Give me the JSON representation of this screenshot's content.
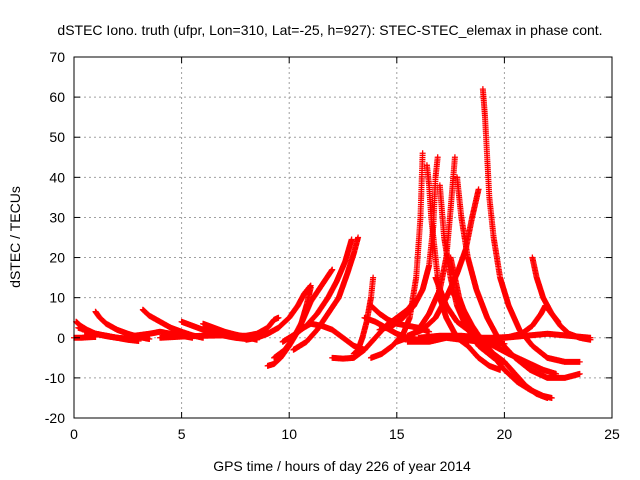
{
  "chart_data": {
    "type": "scatter",
    "title": "dSTEC Iono. truth (ufpr, Lon=310, Lat=-25, h=927): STEC-STEC_elemax in phase cont.",
    "xlabel": "GPS time / hours of day 226 of year 2014",
    "ylabel": "dSTEC  / TECUs",
    "xlim": [
      0,
      25
    ],
    "ylim": [
      -20,
      70
    ],
    "xticks": [
      0,
      5,
      10,
      15,
      20,
      25
    ],
    "yticks": [
      -20,
      -10,
      0,
      10,
      20,
      30,
      40,
      50,
      60,
      70
    ],
    "grid": true,
    "marker": "+",
    "color": "#ff0000",
    "series": [
      {
        "points": [
          [
            0.0,
            0.0
          ],
          [
            0.3,
            0.0
          ],
          [
            0.6,
            0.1
          ],
          [
            0.9,
            0.2
          ],
          [
            1.0,
            0.2
          ]
        ]
      },
      {
        "points": [
          [
            0.1,
            4.0
          ],
          [
            0.3,
            3.0
          ],
          [
            0.6,
            2.0
          ],
          [
            1.0,
            1.0
          ],
          [
            1.5,
            0.4
          ],
          [
            2.0,
            0.0
          ],
          [
            2.5,
            -0.2
          ]
        ]
      },
      {
        "points": [
          [
            0.2,
            2.5
          ],
          [
            0.5,
            2.0
          ],
          [
            1.0,
            1.0
          ],
          [
            1.5,
            0.5
          ],
          [
            2.0,
            0.0
          ],
          [
            2.6,
            -0.3
          ]
        ]
      },
      {
        "points": [
          [
            1.0,
            6.5
          ],
          [
            1.2,
            5.0
          ],
          [
            1.5,
            3.5
          ],
          [
            2.0,
            2.0
          ],
          [
            2.5,
            1.0
          ],
          [
            3.0,
            0.2
          ],
          [
            3.5,
            -0.3
          ]
        ]
      },
      {
        "points": [
          [
            0.5,
            1.5
          ],
          [
            1.0,
            1.0
          ],
          [
            1.5,
            0.5
          ],
          [
            2.0,
            0.0
          ],
          [
            2.5,
            -0.5
          ],
          [
            3.0,
            -0.8
          ]
        ]
      },
      {
        "points": [
          [
            3.2,
            7.0
          ],
          [
            3.5,
            5.5
          ],
          [
            4.0,
            4.0
          ],
          [
            4.5,
            2.5
          ],
          [
            5.0,
            1.5
          ],
          [
            5.5,
            0.6
          ],
          [
            6.0,
            0.0
          ]
        ]
      },
      {
        "points": [
          [
            2.8,
            0.5
          ],
          [
            3.5,
            1.0
          ],
          [
            4.0,
            1.5
          ],
          [
            4.5,
            1.0
          ],
          [
            5.0,
            0.5
          ],
          [
            5.5,
            0.0
          ]
        ]
      },
      {
        "points": [
          [
            5.0,
            4.0
          ],
          [
            5.5,
            3.0
          ],
          [
            6.0,
            2.0
          ],
          [
            6.5,
            1.2
          ],
          [
            7.0,
            0.5
          ],
          [
            7.5,
            0.0
          ],
          [
            8.0,
            -0.3
          ]
        ]
      },
      {
        "points": [
          [
            6.0,
            3.5
          ],
          [
            6.5,
            2.5
          ],
          [
            7.0,
            1.5
          ],
          [
            7.5,
            0.8
          ],
          [
            8.0,
            0.2
          ],
          [
            8.5,
            -0.5
          ]
        ]
      },
      {
        "points": [
          [
            4.0,
            0.0
          ],
          [
            5.0,
            0.3
          ],
          [
            6.0,
            0.5
          ],
          [
            7.0,
            0.6
          ],
          [
            8.0,
            0.5
          ],
          [
            8.5,
            1.0
          ],
          [
            9.0,
            2.5
          ],
          [
            9.3,
            4.5
          ],
          [
            9.5,
            5.0
          ]
        ]
      },
      {
        "points": [
          [
            8.0,
            -0.5
          ],
          [
            8.5,
            0.0
          ],
          [
            9.0,
            1.0
          ],
          [
            9.5,
            2.5
          ],
          [
            10.0,
            5.0
          ],
          [
            10.4,
            8.0
          ],
          [
            10.7,
            11.0
          ],
          [
            11.0,
            13.0
          ]
        ]
      },
      {
        "points": [
          [
            9.0,
            -7.0
          ],
          [
            9.3,
            -6.5
          ],
          [
            9.6,
            -5.0
          ],
          [
            10.0,
            -2.0
          ],
          [
            10.5,
            2.5
          ],
          [
            10.8,
            8.0
          ],
          [
            11.0,
            12.5
          ]
        ]
      },
      {
        "points": [
          [
            9.3,
            -5.0
          ],
          [
            9.8,
            -3.0
          ],
          [
            10.2,
            0.0
          ],
          [
            10.6,
            4.0
          ],
          [
            11.0,
            9.0
          ],
          [
            11.5,
            13.0
          ],
          [
            12.0,
            17.0
          ]
        ]
      },
      {
        "points": [
          [
            9.7,
            -1.0
          ],
          [
            10.3,
            1.0
          ],
          [
            10.8,
            3.0
          ],
          [
            11.3,
            6.0
          ],
          [
            11.8,
            10.0
          ],
          [
            12.2,
            14.0
          ],
          [
            12.6,
            19.0
          ],
          [
            12.9,
            24.5
          ]
        ]
      },
      {
        "points": [
          [
            10.2,
            -3.0
          ],
          [
            10.8,
            -1.0
          ],
          [
            11.3,
            2.0
          ],
          [
            11.8,
            6.0
          ],
          [
            12.3,
            10.0
          ],
          [
            12.7,
            16.0
          ],
          [
            13.0,
            21.0
          ],
          [
            13.2,
            25.0
          ]
        ]
      },
      {
        "points": [
          [
            10.5,
            2.0
          ],
          [
            11.0,
            3.5
          ],
          [
            11.5,
            3.0
          ],
          [
            12.0,
            2.0
          ],
          [
            12.5,
            0.0
          ],
          [
            13.0,
            -2.0
          ],
          [
            13.5,
            -3.0
          ]
        ]
      },
      {
        "points": [
          [
            12.0,
            -5.0
          ],
          [
            12.5,
            -5.2
          ],
          [
            13.0,
            -5.0
          ],
          [
            13.5,
            -3.0
          ],
          [
            14.0,
            0.0
          ],
          [
            14.5,
            3.0
          ],
          [
            15.0,
            5.0
          ],
          [
            15.5,
            7.0
          ],
          [
            15.8,
            9.0
          ]
        ]
      },
      {
        "points": [
          [
            13.0,
            -4.0
          ],
          [
            13.2,
            -3.0
          ],
          [
            13.4,
            0.0
          ],
          [
            13.6,
            4.0
          ],
          [
            13.8,
            10.0
          ],
          [
            13.9,
            15.0
          ]
        ]
      },
      {
        "points": [
          [
            13.8,
            8.0
          ],
          [
            14.2,
            6.0
          ],
          [
            14.6,
            4.5
          ],
          [
            15.0,
            3.5
          ],
          [
            15.5,
            3.0
          ],
          [
            16.0,
            2.5
          ],
          [
            16.5,
            1.5
          ]
        ]
      },
      {
        "points": [
          [
            13.5,
            5.0
          ],
          [
            14.0,
            4.0
          ],
          [
            14.5,
            2.5
          ],
          [
            15.0,
            1.0
          ],
          [
            15.5,
            0.0
          ],
          [
            16.0,
            -0.5
          ],
          [
            16.5,
            0.0
          ]
        ]
      },
      {
        "points": [
          [
            13.8,
            -5.0
          ],
          [
            14.3,
            -4.0
          ],
          [
            14.8,
            -2.0
          ],
          [
            15.3,
            1.0
          ],
          [
            15.6,
            5.0
          ],
          [
            15.9,
            15.0
          ],
          [
            16.1,
            30.0
          ],
          [
            16.2,
            46.0
          ]
        ]
      },
      {
        "points": [
          [
            16.4,
            43.0
          ],
          [
            16.5,
            38.0
          ],
          [
            16.6,
            30.0
          ],
          [
            16.8,
            20.0
          ],
          [
            17.0,
            10.0
          ],
          [
            17.3,
            5.0
          ],
          [
            17.8,
            0.0
          ],
          [
            18.3,
            -2.0
          ],
          [
            18.8,
            -5.0
          ],
          [
            19.3,
            -7.0
          ],
          [
            19.8,
            -8.0
          ]
        ]
      },
      {
        "points": [
          [
            14.2,
            2.0
          ],
          [
            14.8,
            3.0
          ],
          [
            15.3,
            5.0
          ],
          [
            15.8,
            8.0
          ],
          [
            16.2,
            12.0
          ],
          [
            16.5,
            18.0
          ],
          [
            16.7,
            28.0
          ],
          [
            16.8,
            40.0
          ],
          [
            16.9,
            45.0
          ]
        ]
      },
      {
        "points": [
          [
            17.0,
            38.0
          ],
          [
            17.2,
            25.0
          ],
          [
            17.5,
            15.0
          ],
          [
            17.8,
            8.0
          ],
          [
            18.2,
            3.0
          ],
          [
            18.8,
            -2.0
          ],
          [
            19.5,
            -5.0
          ],
          [
            20.0,
            -6.0
          ]
        ]
      },
      {
        "points": [
          [
            15.0,
            -1.0
          ],
          [
            15.5,
            0.0
          ],
          [
            16.0,
            2.0
          ],
          [
            16.5,
            6.0
          ],
          [
            17.0,
            12.0
          ],
          [
            17.3,
            20.0
          ],
          [
            17.5,
            32.0
          ],
          [
            17.7,
            45.0
          ]
        ]
      },
      {
        "points": [
          [
            17.8,
            40.0
          ],
          [
            18.0,
            30.0
          ],
          [
            18.3,
            20.0
          ],
          [
            18.7,
            12.0
          ],
          [
            19.2,
            5.0
          ],
          [
            19.8,
            -1.0
          ],
          [
            20.5,
            -5.0
          ],
          [
            21.2,
            -8.0
          ],
          [
            22.0,
            -10.0
          ],
          [
            22.8,
            -10.0
          ],
          [
            23.5,
            -9.0
          ]
        ]
      },
      {
        "points": [
          [
            15.5,
            0.5
          ],
          [
            16.2,
            2.0
          ],
          [
            16.8,
            5.0
          ],
          [
            17.3,
            10.0
          ],
          [
            17.8,
            16.0
          ],
          [
            18.2,
            22.0
          ],
          [
            18.5,
            30.0
          ],
          [
            18.8,
            37.0
          ]
        ]
      },
      {
        "points": [
          [
            17.5,
            20.0
          ],
          [
            17.9,
            10.0
          ],
          [
            18.3,
            4.0
          ],
          [
            18.8,
            0.0
          ],
          [
            19.4,
            -4.0
          ],
          [
            20.0,
            -8.0
          ],
          [
            20.6,
            -11.0
          ],
          [
            21.2,
            -13.0
          ],
          [
            21.8,
            -14.5
          ],
          [
            22.2,
            -15.0
          ]
        ]
      },
      {
        "points": [
          [
            19.0,
            62.0
          ],
          [
            19.1,
            55.0
          ],
          [
            19.2,
            45.0
          ],
          [
            19.3,
            35.0
          ],
          [
            19.5,
            25.0
          ],
          [
            19.8,
            15.0
          ],
          [
            20.2,
            8.0
          ],
          [
            20.7,
            2.0
          ],
          [
            21.3,
            -2.0
          ],
          [
            22.0,
            -5.0
          ],
          [
            22.8,
            -6.0
          ],
          [
            23.5,
            -6.0
          ]
        ]
      },
      {
        "points": [
          [
            16.8,
            15.0
          ],
          [
            17.3,
            8.0
          ],
          [
            17.8,
            4.0
          ],
          [
            18.3,
            2.0
          ],
          [
            18.8,
            0.0
          ],
          [
            19.5,
            -2.0
          ],
          [
            20.2,
            -4.0
          ],
          [
            21.0,
            -6.0
          ],
          [
            21.8,
            -8.0
          ],
          [
            22.4,
            -9.0
          ]
        ]
      },
      {
        "points": [
          [
            17.5,
            12.0
          ],
          [
            18.0,
            8.0
          ],
          [
            18.5,
            3.0
          ],
          [
            19.0,
            -1.0
          ],
          [
            19.5,
            -4.0
          ],
          [
            20.0,
            -6.0
          ],
          [
            20.5,
            -9.0
          ],
          [
            21.0,
            -12.0
          ],
          [
            21.5,
            -14.0
          ],
          [
            22.0,
            -15.0
          ]
        ]
      },
      {
        "points": [
          [
            21.3,
            20.0
          ],
          [
            21.5,
            15.0
          ],
          [
            21.8,
            10.0
          ],
          [
            22.2,
            6.0
          ],
          [
            22.6,
            3.0
          ],
          [
            23.0,
            1.0
          ],
          [
            23.5,
            0.0
          ],
          [
            24.0,
            -0.5
          ]
        ]
      },
      {
        "points": [
          [
            19.5,
            0.0
          ],
          [
            20.2,
            0.2
          ],
          [
            20.8,
            1.0
          ],
          [
            21.3,
            3.0
          ],
          [
            21.7,
            6.0
          ],
          [
            21.9,
            8.0
          ],
          [
            22.2,
            6.0
          ],
          [
            22.5,
            4.0
          ]
        ]
      },
      {
        "points": [
          [
            16.0,
            0.0
          ],
          [
            17.0,
            0.5
          ],
          [
            18.0,
            0.5
          ],
          [
            19.0,
            0.0
          ],
          [
            20.0,
            0.0
          ],
          [
            21.0,
            0.5
          ],
          [
            22.0,
            1.0
          ],
          [
            23.0,
            0.5
          ],
          [
            24.0,
            0.0
          ]
        ]
      },
      {
        "points": [
          [
            15.5,
            -1.0
          ],
          [
            16.5,
            -1.0
          ],
          [
            17.3,
            0.0
          ],
          [
            18.0,
            -0.5
          ],
          [
            19.0,
            -1.0
          ],
          [
            20.0,
            -1.5
          ]
        ]
      }
    ]
  }
}
